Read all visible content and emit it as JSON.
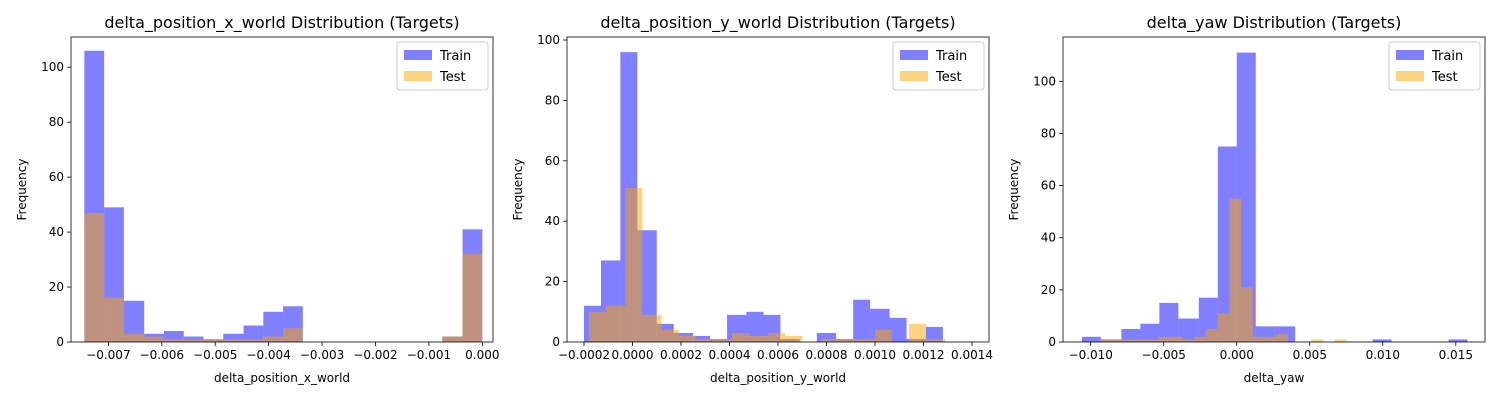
{
  "chart_data": [
    {
      "type": "histogram",
      "title": "delta_position_x_world Distribution (Targets)",
      "xlabel": "delta_position_x_world",
      "ylabel": "Frequency",
      "xlim": [
        -0.0077,
        0.0002
      ],
      "ylim": [
        0,
        111
      ],
      "xticks": [
        -0.007,
        -0.006,
        -0.005,
        -0.004,
        -0.003,
        -0.002,
        -0.001,
        0.0
      ],
      "xtick_labels": [
        "−0.007",
        "−0.006",
        "−0.005",
        "−0.004",
        "−0.003",
        "−0.002",
        "−0.001",
        "0.000"
      ],
      "yticks": [
        0,
        20,
        40,
        60,
        80,
        100
      ],
      "ytick_labels": [
        "0",
        "20",
        "40",
        "60",
        "80",
        "100"
      ],
      "legend": "top-right",
      "grid": false,
      "series": [
        {
          "name": "Train",
          "color": "#0000ff",
          "opacity": 0.5,
          "bins": [
            [
              -0.00745,
              -0.00708,
              106
            ],
            [
              -0.00708,
              -0.00671,
              49
            ],
            [
              -0.00671,
              -0.00633,
              15
            ],
            [
              -0.00633,
              -0.00596,
              3
            ],
            [
              -0.00596,
              -0.00559,
              4
            ],
            [
              -0.00559,
              -0.00522,
              2
            ],
            [
              -0.00522,
              -0.00485,
              1
            ],
            [
              -0.00485,
              -0.00447,
              3
            ],
            [
              -0.00447,
              -0.0041,
              6
            ],
            [
              -0.0041,
              -0.00373,
              11
            ],
            [
              -0.00373,
              -0.00336,
              13
            ],
            [
              -0.00075,
              -0.00037,
              2
            ],
            [
              -0.00037,
              0.0,
              41
            ]
          ]
        },
        {
          "name": "Test",
          "color": "#ffa500",
          "opacity": 0.5,
          "bins": [
            [
              -0.00745,
              -0.00708,
              47
            ],
            [
              -0.00708,
              -0.00671,
              16
            ],
            [
              -0.00671,
              -0.00633,
              3
            ],
            [
              -0.00633,
              -0.00596,
              2
            ],
            [
              -0.00596,
              -0.00559,
              1
            ],
            [
              -0.00559,
              -0.00522,
              1
            ],
            [
              -0.00522,
              -0.00485,
              1
            ],
            [
              -0.00485,
              -0.00447,
              1
            ],
            [
              -0.00447,
              -0.0041,
              1
            ],
            [
              -0.0041,
              -0.00373,
              2
            ],
            [
              -0.00373,
              -0.00336,
              5
            ],
            [
              -0.00075,
              -0.00037,
              2
            ],
            [
              -0.00037,
              0.0,
              32
            ]
          ]
        }
      ]
    },
    {
      "type": "histogram",
      "title": "delta_position_y_world Distribution (Targets)",
      "xlabel": "delta_position_y_world",
      "ylabel": "Frequency",
      "xlim": [
        -0.00027,
        0.00147
      ],
      "ylim": [
        0,
        101
      ],
      "xticks": [
        -0.0002,
        0.0,
        0.0002,
        0.0004,
        0.0006,
        0.0008,
        0.001,
        0.0012,
        0.0014
      ],
      "xtick_labels": [
        "−0.0002",
        "0.0000",
        "0.0002",
        "0.0004",
        "0.0006",
        "0.0008",
        "0.0010",
        "0.0012",
        "0.0014"
      ],
      "yticks": [
        0,
        20,
        40,
        60,
        80,
        100
      ],
      "ytick_labels": [
        "0",
        "20",
        "40",
        "60",
        "80",
        "100"
      ],
      "legend": "top-right",
      "grid": false,
      "series": [
        {
          "name": "Train",
          "color": "#0000ff",
          "opacity": 0.5,
          "bins": [
            [
              -0.0002,
              -0.00013,
              12
            ],
            [
              -0.00013,
              -5e-05,
              27
            ],
            [
              -5e-05,
              2e-05,
              96
            ],
            [
              2e-05,
              0.0001,
              37
            ],
            [
              0.0001,
              0.00017,
              6
            ],
            [
              0.00017,
              0.00025,
              3
            ],
            [
              0.00025,
              0.00032,
              2
            ],
            [
              0.00032,
              0.00039,
              1
            ],
            [
              0.00039,
              0.00047,
              9
            ],
            [
              0.00047,
              0.00054,
              10
            ],
            [
              0.00054,
              0.00061,
              9
            ],
            [
              0.00061,
              0.00069,
              1
            ],
            [
              0.00069,
              0.00076,
              0
            ],
            [
              0.00076,
              0.00084,
              3
            ],
            [
              0.00084,
              0.00091,
              1
            ],
            [
              0.00091,
              0.00098,
              14
            ],
            [
              0.00098,
              0.00106,
              11
            ],
            [
              0.00106,
              0.00113,
              8
            ],
            [
              0.00113,
              0.00121,
              1
            ],
            [
              0.00121,
              0.00128,
              5
            ]
          ]
        },
        {
          "name": "Test",
          "color": "#ffa500",
          "opacity": 0.5,
          "bins": [
            [
              -0.00018,
              -0.00011,
              10
            ],
            [
              -0.00011,
              -3e-05,
              12
            ],
            [
              -3e-05,
              4e-05,
              51
            ],
            [
              4e-05,
              0.00012,
              9
            ],
            [
              0.00012,
              0.00019,
              4
            ],
            [
              0.00019,
              0.00026,
              2
            ],
            [
              0.00026,
              0.00034,
              1
            ],
            [
              0.00034,
              0.00041,
              1
            ],
            [
              0.00041,
              0.00048,
              3
            ],
            [
              0.00048,
              0.00056,
              2
            ],
            [
              0.00056,
              0.00063,
              3
            ],
            [
              0.00063,
              0.0007,
              2
            ],
            [
              0.0007,
              0.00078,
              0
            ],
            [
              0.00078,
              0.00085,
              1
            ],
            [
              0.00085,
              0.00092,
              1
            ],
            [
              0.00092,
              0.001,
              1
            ],
            [
              0.001,
              0.00107,
              4
            ],
            [
              0.00107,
              0.00114,
              0
            ],
            [
              0.00114,
              0.00121,
              6
            ],
            [
              0.00121,
              0.00129,
              1
            ]
          ]
        }
      ]
    },
    {
      "type": "histogram",
      "title": "delta_yaw Distribution (Targets)",
      "xlabel": "delta_yaw",
      "ylabel": "Frequency",
      "xlim": [
        -0.0119,
        0.017
      ],
      "ylim": [
        0,
        117
      ],
      "xticks": [
        -0.01,
        -0.005,
        0.0,
        0.005,
        0.01,
        0.015
      ],
      "xtick_labels": [
        "−0.010",
        "−0.005",
        "0.000",
        "0.005",
        "0.010",
        "0.015"
      ],
      "yticks": [
        0,
        20,
        40,
        60,
        80,
        100
      ],
      "ytick_labels": [
        "0",
        "20",
        "40",
        "60",
        "80",
        "100"
      ],
      "legend": "top-right",
      "grid": false,
      "series": [
        {
          "name": "Train",
          "color": "#0000ff",
          "opacity": 0.5,
          "bins": [
            [
              -0.0106,
              -0.0093,
              2
            ],
            [
              -0.0093,
              -0.0079,
              1
            ],
            [
              -0.0079,
              -0.0066,
              5
            ],
            [
              -0.0066,
              -0.0053,
              7
            ],
            [
              -0.0053,
              -0.004,
              15
            ],
            [
              -0.004,
              -0.0026,
              9
            ],
            [
              -0.0026,
              -0.0013,
              17
            ],
            [
              -0.0013,
              0.0,
              75
            ],
            [
              0.0,
              0.0013,
              111
            ],
            [
              0.0013,
              0.0026,
              6
            ],
            [
              0.0026,
              0.004,
              6
            ],
            [
              0.004,
              0.0053,
              0
            ],
            [
              0.0053,
              0.0066,
              0
            ],
            [
              0.0066,
              0.0079,
              0
            ],
            [
              0.0079,
              0.0093,
              0
            ],
            [
              0.0093,
              0.0106,
              1
            ],
            [
              0.0106,
              0.0119,
              0
            ],
            [
              0.0119,
              0.0132,
              0
            ],
            [
              0.0132,
              0.0145,
              0
            ],
            [
              0.0145,
              0.0158,
              1
            ]
          ]
        },
        {
          "name": "Test",
          "color": "#ffa500",
          "opacity": 0.5,
          "bins": [
            [
              -0.0093,
              -0.0085,
              1
            ],
            [
              -0.0085,
              -0.0077,
              1
            ],
            [
              -0.0077,
              -0.0069,
              1
            ],
            [
              -0.0069,
              -0.0061,
              1
            ],
            [
              -0.0061,
              -0.0053,
              1
            ],
            [
              -0.0053,
              -0.0045,
              2
            ],
            [
              -0.0045,
              -0.0037,
              2
            ],
            [
              -0.0037,
              -0.0029,
              1
            ],
            [
              -0.0029,
              -0.0021,
              2
            ],
            [
              -0.0021,
              -0.0013,
              5
            ],
            [
              -0.0013,
              -0.0005,
              11
            ],
            [
              -0.0005,
              0.0003,
              55
            ],
            [
              0.0003,
              0.0011,
              21
            ],
            [
              0.0011,
              0.0019,
              2
            ],
            [
              0.0019,
              0.0027,
              2
            ],
            [
              0.0027,
              0.0035,
              3
            ],
            [
              0.0051,
              0.0059,
              1
            ],
            [
              0.0067,
              0.0075,
              1
            ]
          ]
        }
      ]
    }
  ]
}
